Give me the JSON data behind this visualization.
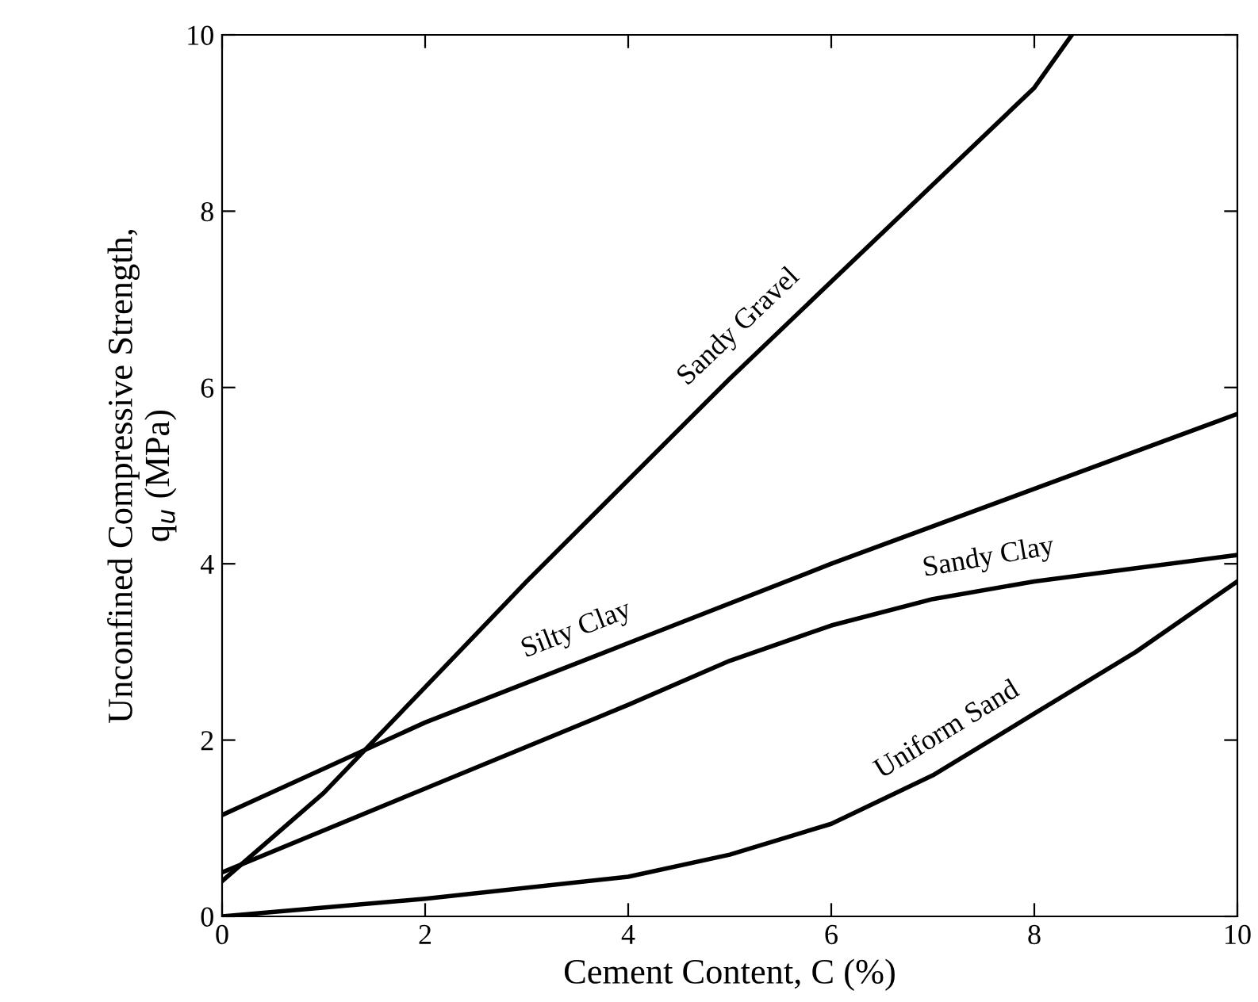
{
  "chart_data": {
    "type": "line",
    "xlabel": "Cement Content, C (%)",
    "ylabel": "Unconfined Compressive Strength,\nq$_{u}$ (MPa)",
    "xlim": [
      0,
      10
    ],
    "ylim": [
      0,
      10
    ],
    "xticks": [
      0,
      2,
      4,
      6,
      8,
      10
    ],
    "yticks": [
      0,
      2,
      4,
      6,
      8,
      10
    ],
    "grid": false,
    "legend": false,
    "marker": "none",
    "line_style": "solid",
    "series": [
      {
        "name": "Sandy Gravel",
        "color": "#000000",
        "x": [
          0,
          1,
          2,
          3,
          4,
          5,
          6,
          7,
          8,
          8.37
        ],
        "values": [
          0.4,
          1.4,
          2.6,
          3.8,
          4.95,
          6.1,
          7.2,
          8.3,
          9.4,
          10
        ]
      },
      {
        "name": "Silty Clay",
        "color": "#000000",
        "x": [
          0,
          2,
          4,
          6,
          8,
          10
        ],
        "values": [
          1.15,
          2.2,
          3.1,
          4.0,
          4.85,
          5.7
        ]
      },
      {
        "name": "Sandy Clay",
        "color": "#000000",
        "x": [
          0,
          2,
          4,
          5,
          6,
          7,
          8,
          9,
          10
        ],
        "values": [
          0.5,
          1.45,
          2.4,
          2.9,
          3.3,
          3.6,
          3.8,
          3.95,
          4.1
        ]
      },
      {
        "name": "Uniform Sand",
        "color": "#000000",
        "x": [
          0,
          2,
          4,
          5,
          6,
          7,
          8,
          9,
          10
        ],
        "values": [
          0,
          0.2,
          0.45,
          0.7,
          1.05,
          1.6,
          2.3,
          3.0,
          3.8
        ]
      }
    ]
  }
}
